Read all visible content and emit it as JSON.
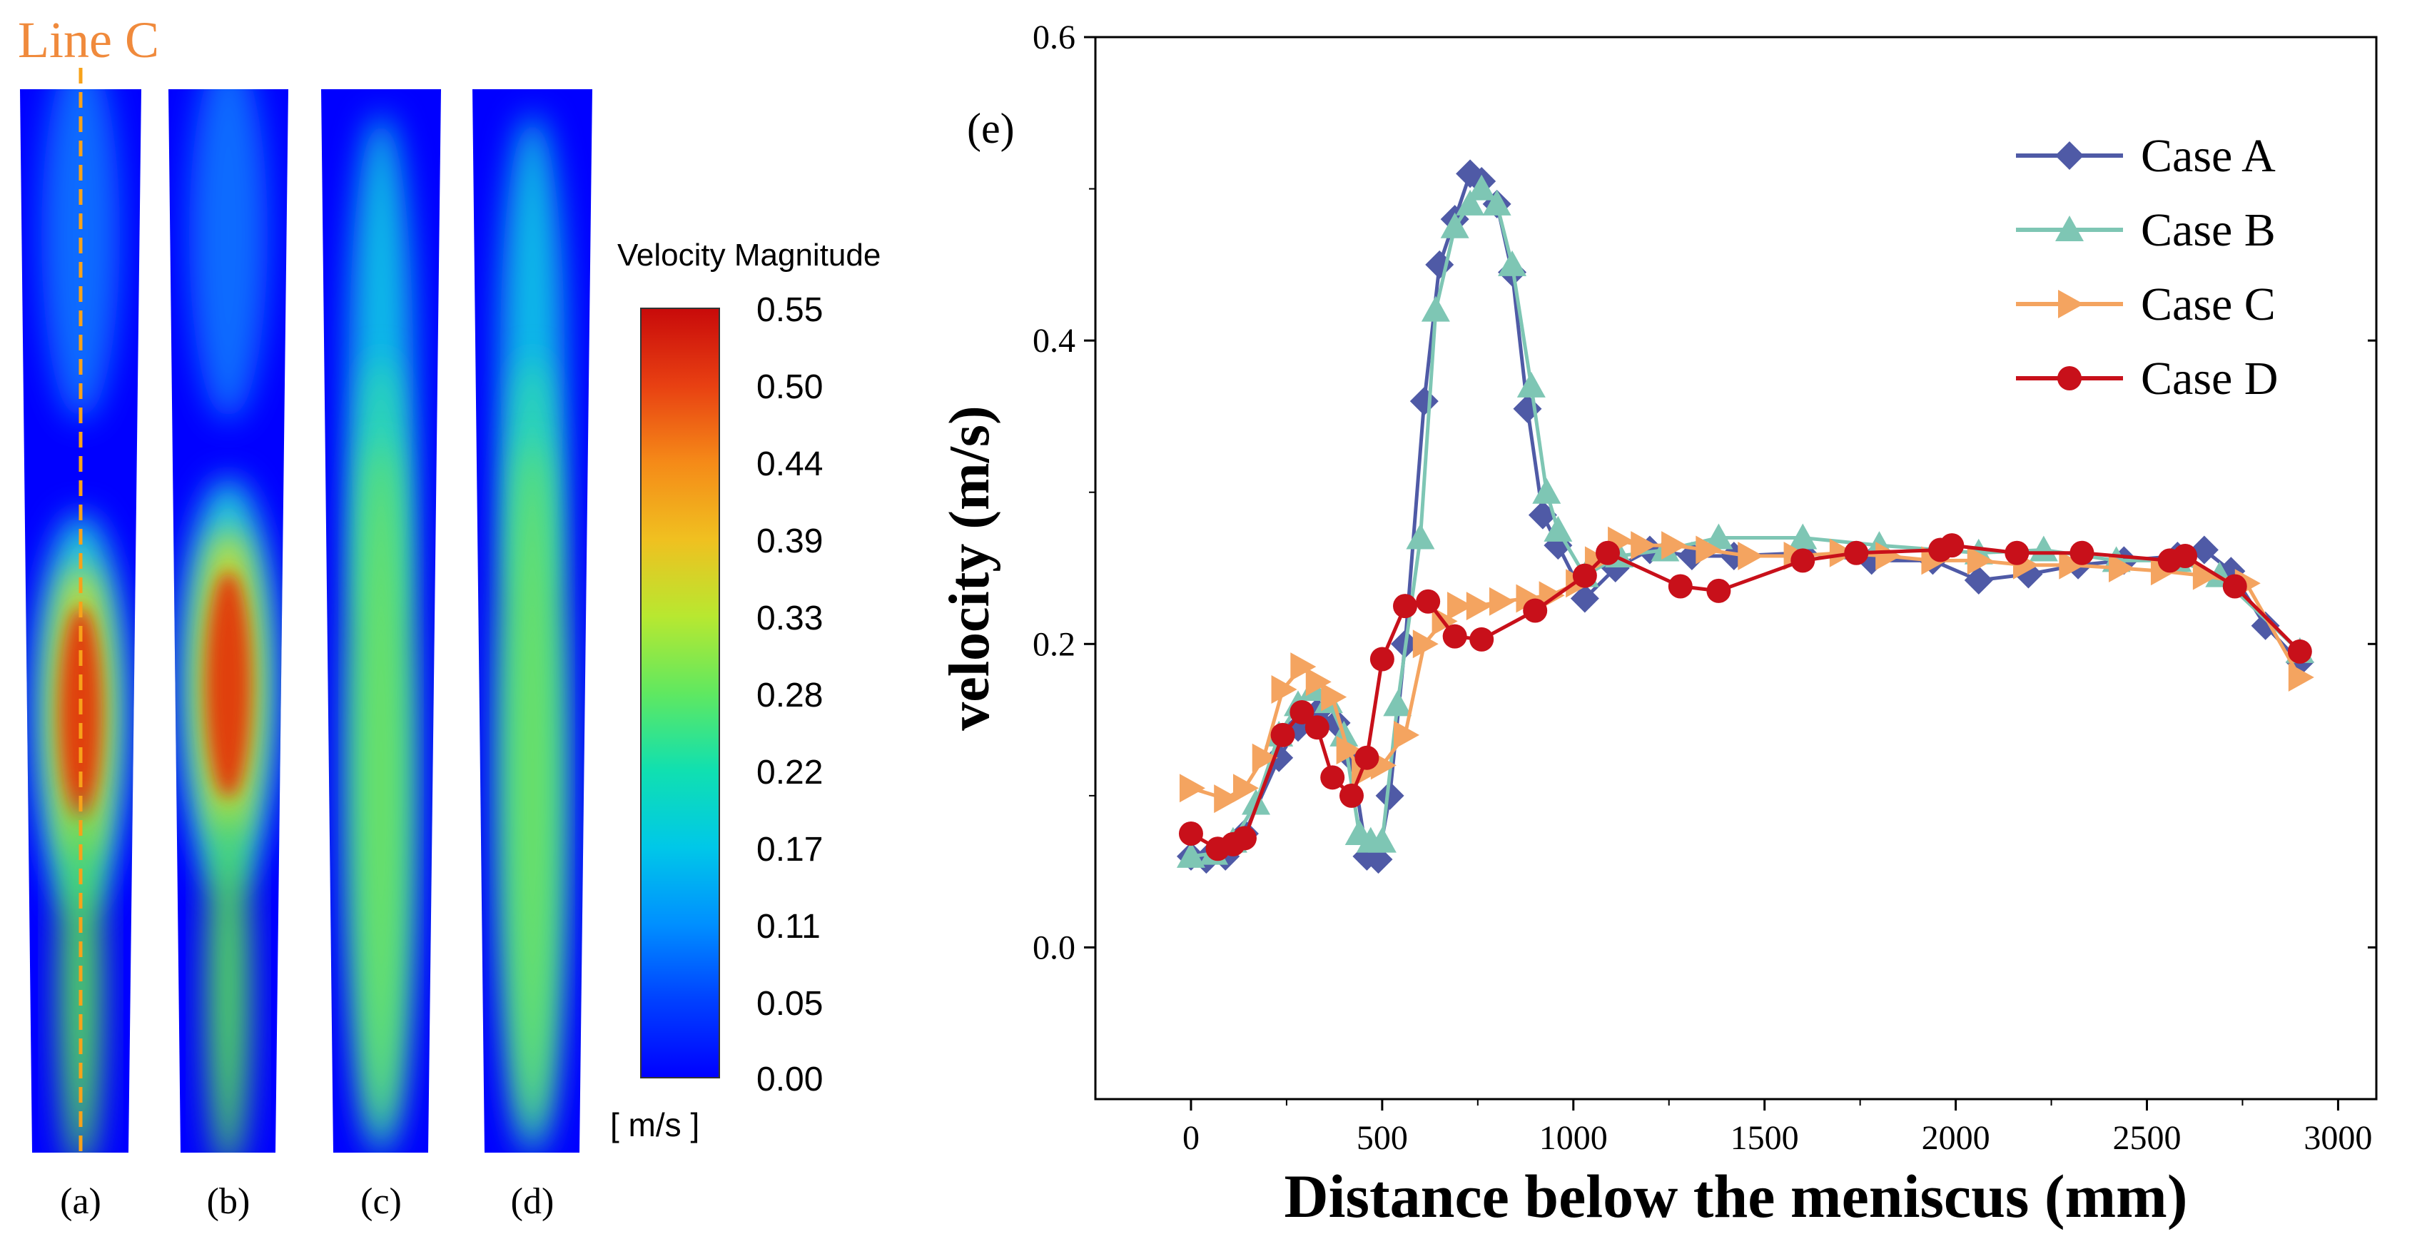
{
  "contour_panel": {
    "line_label": "Line C",
    "colorbar_title": "Velocity Magnitude",
    "colorbar_ticks": [
      "0.55",
      "0.50",
      "0.44",
      "0.39",
      "0.33",
      "0.28",
      "0.22",
      "0.17",
      "0.11",
      "0.05",
      "0.00"
    ],
    "colorbar_unit": "[ m/s ]",
    "panel_labels": [
      "(a)",
      "(b)",
      "(c)",
      "(d)"
    ],
    "cases": [
      {
        "label": "(a)",
        "peak_velocity": 0.5,
        "jet_max_velocity": 0.14
      },
      {
        "label": "(b)",
        "peak_velocity": 0.5,
        "jet_max_velocity": 0.14
      },
      {
        "label": "(c)",
        "peak_velocity": 0.26,
        "jet_max_velocity": 0.2
      },
      {
        "label": "(d)",
        "peak_velocity": 0.26,
        "jet_max_velocity": 0.2
      }
    ]
  },
  "colors": {
    "case_a": "#4f5aa6",
    "case_b": "#7ec6b4",
    "case_c": "#f4a460",
    "case_d": "#c8101a",
    "line_c": "#f08a3c"
  },
  "chart_data": {
    "type": "line",
    "panel_label": "(e)",
    "title": "",
    "xlabel": "Distance below the meniscus (mm)",
    "ylabel": "velocity (m/s)",
    "xlim": [
      -250,
      3100
    ],
    "ylim": [
      -0.1,
      0.6
    ],
    "xticks": [
      0,
      500,
      1000,
      1500,
      2000,
      2500,
      3000
    ],
    "yticks": [
      0.0,
      0.2,
      0.4,
      0.6
    ],
    "xtick_labels": [
      "0",
      "500",
      "1000",
      "1500",
      "2000",
      "2500",
      "3000"
    ],
    "ytick_labels": [
      "0.0",
      "0.2",
      "0.4",
      "0.6"
    ],
    "legend_position": "top-right",
    "series": [
      {
        "name": "Case A",
        "marker": "diamond",
        "color": "#4f5aa6",
        "x": [
          0,
          40,
          90,
          140,
          230,
          280,
          330,
          380,
          420,
          460,
          490,
          520,
          560,
          610,
          650,
          690,
          730,
          760,
          800,
          840,
          880,
          920,
          960,
          1030,
          1110,
          1200,
          1310,
          1420,
          1600,
          1780,
          1940,
          2060,
          2190,
          2320,
          2440,
          2580,
          2650,
          2720,
          2810,
          2900
        ],
        "y": [
          0.06,
          0.058,
          0.06,
          0.075,
          0.125,
          0.145,
          0.155,
          0.148,
          0.125,
          0.06,
          0.058,
          0.1,
          0.2,
          0.36,
          0.45,
          0.48,
          0.51,
          0.505,
          0.49,
          0.445,
          0.355,
          0.285,
          0.265,
          0.23,
          0.25,
          0.262,
          0.258,
          0.258,
          0.26,
          0.255,
          0.255,
          0.242,
          0.246,
          0.252,
          0.255,
          0.258,
          0.262,
          0.248,
          0.212,
          0.188
        ]
      },
      {
        "name": "Case B",
        "marker": "triangle",
        "color": "#7ec6b4",
        "x": [
          0,
          60,
          110,
          170,
          230,
          280,
          320,
          360,
          400,
          440,
          470,
          500,
          540,
          600,
          640,
          690,
          730,
          760,
          800,
          840,
          890,
          930,
          960,
          1030,
          1120,
          1240,
          1380,
          1600,
          1800,
          2060,
          2230,
          2420,
          2580,
          2690,
          2900
        ],
        "y": [
          0.06,
          0.062,
          0.07,
          0.095,
          0.14,
          0.16,
          0.17,
          0.162,
          0.14,
          0.075,
          0.07,
          0.07,
          0.16,
          0.27,
          0.42,
          0.475,
          0.49,
          0.5,
          0.49,
          0.45,
          0.37,
          0.3,
          0.275,
          0.245,
          0.258,
          0.262,
          0.27,
          0.27,
          0.265,
          0.26,
          0.262,
          0.255,
          0.255,
          0.245,
          0.195
        ]
      },
      {
        "name": "Case C",
        "marker": "triangle-right",
        "color": "#f4a460",
        "x": [
          0,
          90,
          140,
          190,
          240,
          290,
          330,
          370,
          410,
          450,
          500,
          560,
          610,
          660,
          700,
          750,
          810,
          880,
          940,
          1010,
          1060,
          1120,
          1180,
          1260,
          1350,
          1460,
          1580,
          1700,
          1820,
          1940,
          2060,
          2180,
          2300,
          2430,
          2540,
          2650,
          2760,
          2900
        ],
        "y": [
          0.105,
          0.098,
          0.105,
          0.125,
          0.17,
          0.185,
          0.175,
          0.165,
          0.13,
          0.115,
          0.12,
          0.14,
          0.2,
          0.215,
          0.225,
          0.225,
          0.228,
          0.23,
          0.232,
          0.24,
          0.255,
          0.268,
          0.265,
          0.265,
          0.262,
          0.258,
          0.258,
          0.26,
          0.258,
          0.255,
          0.255,
          0.252,
          0.252,
          0.25,
          0.248,
          0.245,
          0.24,
          0.178
        ]
      },
      {
        "name": "Case D",
        "marker": "circle",
        "color": "#c8101a",
        "x": [
          0,
          70,
          110,
          140,
          240,
          290,
          330,
          370,
          420,
          460,
          500,
          560,
          620,
          690,
          760,
          900,
          1030,
          1090,
          1280,
          1380,
          1600,
          1740,
          1960,
          1990,
          2160,
          2330,
          2560,
          2600,
          2730,
          2900
        ],
        "y": [
          0.075,
          0.065,
          0.068,
          0.072,
          0.14,
          0.155,
          0.145,
          0.112,
          0.1,
          0.125,
          0.19,
          0.225,
          0.228,
          0.205,
          0.203,
          0.222,
          0.245,
          0.26,
          0.238,
          0.235,
          0.255,
          0.26,
          0.262,
          0.265,
          0.26,
          0.26,
          0.255,
          0.258,
          0.238,
          0.195
        ]
      }
    ]
  }
}
